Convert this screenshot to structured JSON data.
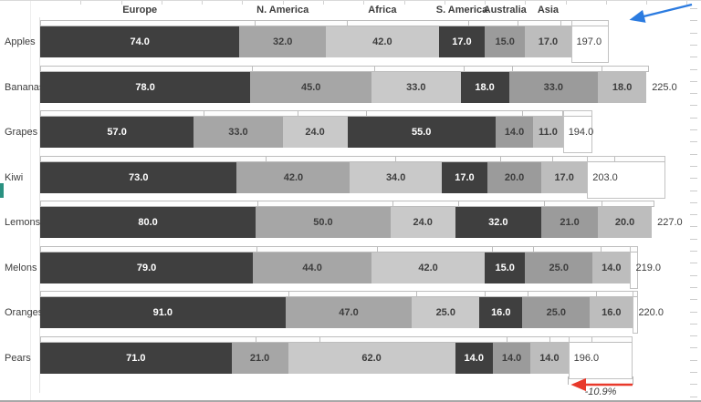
{
  "chart_data": {
    "type": "bar",
    "subtype": "horizontal-stacked-comparison",
    "title": "",
    "legend_position": "top-inline",
    "grid": false,
    "series_labels": [
      "Europe",
      "N. America",
      "Africa",
      "S. America",
      "Australia",
      "Asia"
    ],
    "categories": [
      "Apples",
      "Bananas",
      "Grapes",
      "Kiwi",
      "Lemons",
      "Melons",
      "Oranges",
      "Pears"
    ],
    "rows": [
      {
        "label": "Apples",
        "values": [
          74,
          32,
          42,
          17,
          15,
          17
        ],
        "total": 197.0,
        "reference_total": 211
      },
      {
        "label": "Bananas",
        "values": [
          78,
          45,
          33,
          18,
          33,
          18
        ],
        "total": 225.0,
        "reference_total": 226
      },
      {
        "label": "Grapes",
        "values": [
          57,
          33,
          24,
          55,
          14,
          11
        ],
        "total": 194.0,
        "reference_total": 205
      },
      {
        "label": "Kiwi",
        "values": [
          73,
          42,
          34,
          17,
          20,
          17
        ],
        "total": 203.0,
        "reference_total": 232
      },
      {
        "label": "Lemons",
        "values": [
          80,
          50,
          24,
          32,
          21,
          20
        ],
        "total": 227.0,
        "reference_total": 228
      },
      {
        "label": "Melons",
        "values": [
          79,
          44,
          42,
          15,
          25,
          14
        ],
        "total": 219.0,
        "reference_total": 222
      },
      {
        "label": "Oranges",
        "values": [
          91,
          47,
          25,
          16,
          25,
          16
        ],
        "total": 220.0,
        "reference_total": 222
      },
      {
        "label": "Pears",
        "values": [
          71,
          21,
          62,
          14,
          14,
          14
        ],
        "total": 196.0,
        "reference_total": 220
      }
    ],
    "colors": {
      "segments": [
        "#3f3f3f",
        "#a6a6a6",
        "#c9c9c9",
        "#3f3f3f",
        "#9b9b9b",
        "#bdbdbd"
      ],
      "label_on_dark": "#ffffff",
      "label_on_light": "#3d3d3d",
      "reference_fill": "#fdfdfd",
      "reference_border": "#bdbdbd",
      "teal_artifact": "#2a9181"
    },
    "annotations": {
      "decrease_arrow": {
        "label": "-10.9%",
        "color": "#e8392b",
        "row": "Pears",
        "from_value": 220,
        "to_value": 196
      },
      "pointer_arrow": {
        "color": "#2b7be0",
        "points_to": "end of Apples reference bar"
      }
    }
  }
}
